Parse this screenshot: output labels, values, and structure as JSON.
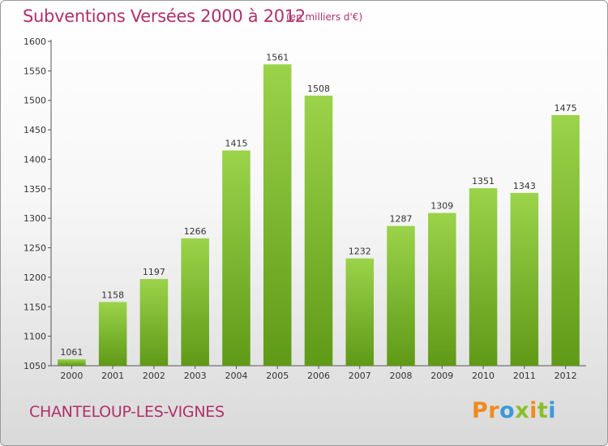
{
  "title": "Subventions Versées 2000 à 2012",
  "subtitle": "(en milliers d'€)",
  "place": "CHANTELOUP-LES-VIGNES",
  "logo": "Proxiti",
  "colors": {
    "title": "#b0306a",
    "bar_light": "#9bd34a",
    "bar_dark": "#5f9a17",
    "logo": [
      "#f08a1c",
      "#f08a1c",
      "#3a9ad9",
      "#8bbf2a",
      "#f08a1c",
      "#8bbf2a",
      "#3a9ad9"
    ]
  },
  "chart_data": {
    "type": "bar",
    "title": "Subventions Versées 2000 à 2012",
    "categories": [
      "2000",
      "2001",
      "2002",
      "2003",
      "2004",
      "2005",
      "2006",
      "2007",
      "2008",
      "2009",
      "2010",
      "2011",
      "2012"
    ],
    "values": [
      1061,
      1158,
      1197,
      1266,
      1415,
      1561,
      1508,
      1232,
      1287,
      1309,
      1351,
      1343,
      1475
    ],
    "value_labels": [
      "1061",
      "1158",
      "1197",
      "1266",
      "1415",
      "1561",
      "1508",
      "1232",
      "1287",
      "1309",
      "1351",
      "1343",
      "1475"
    ],
    "ylim": [
      1050,
      1600
    ],
    "yticks": [
      "1050",
      "1100",
      "1150",
      "1200",
      "1250",
      "1300",
      "1350",
      "1400",
      "1450",
      "1500",
      "1550",
      "1600"
    ],
    "xlabel": "",
    "ylabel": "",
    "grid": false,
    "legend": "none"
  }
}
